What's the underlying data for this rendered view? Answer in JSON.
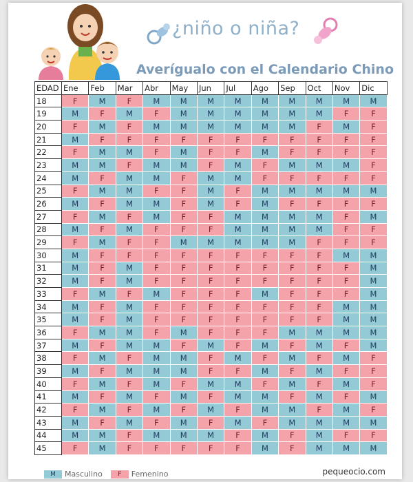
{
  "header": {
    "title": "¿niño o niña?",
    "subtitle": "Averígualo con el Calendario Chino"
  },
  "colors": {
    "M": "#93cad6",
    "F": "#f5a3ab"
  },
  "table": {
    "columns": [
      "EDAD",
      "Ene",
      "Feb",
      "Mar",
      "Abr",
      "May",
      "Jun",
      "Jul",
      "Ago",
      "Sep",
      "Oct",
      "Nov",
      "Dic"
    ],
    "rows": [
      {
        "age": "18",
        "values": [
          "F",
          "M",
          "F",
          "M",
          "M",
          "M",
          "M",
          "M",
          "M",
          "M",
          "M",
          "M"
        ]
      },
      {
        "age": "19",
        "values": [
          "M",
          "F",
          "M",
          "F",
          "M",
          "M",
          "M",
          "M",
          "M",
          "M",
          "F",
          "F"
        ]
      },
      {
        "age": "20",
        "values": [
          "F",
          "M",
          "F",
          "M",
          "M",
          "M",
          "M",
          "M",
          "M",
          "F",
          "M",
          "F"
        ]
      },
      {
        "age": "21",
        "values": [
          "M",
          "F",
          "F",
          "F",
          "F",
          "F",
          "F",
          "F",
          "F",
          "F",
          "F",
          "F"
        ]
      },
      {
        "age": "22",
        "values": [
          "F",
          "M",
          "M",
          "F",
          "M",
          "F",
          "F",
          "M",
          "F",
          "F",
          "F",
          "F"
        ]
      },
      {
        "age": "23",
        "values": [
          "M",
          "M",
          "F",
          "M",
          "M",
          "F",
          "M",
          "F",
          "M",
          "M",
          "M",
          "F"
        ]
      },
      {
        "age": "24",
        "values": [
          "M",
          "F",
          "M",
          "M",
          "F",
          "M",
          "M",
          "F",
          "F",
          "F",
          "F",
          "F"
        ]
      },
      {
        "age": "25",
        "values": [
          "F",
          "M",
          "M",
          "F",
          "F",
          "M",
          "F",
          "M",
          "M",
          "M",
          "M",
          "M"
        ]
      },
      {
        "age": "26",
        "values": [
          "M",
          "F",
          "M",
          "M",
          "F",
          "M",
          "F",
          "M",
          "F",
          "F",
          "F",
          "F"
        ]
      },
      {
        "age": "27",
        "values": [
          "F",
          "M",
          "F",
          "M",
          "F",
          "F",
          "M",
          "M",
          "M",
          "M",
          "F",
          "M"
        ]
      },
      {
        "age": "28",
        "values": [
          "M",
          "F",
          "M",
          "F",
          "F",
          "F",
          "M",
          "M",
          "M",
          "M",
          "F",
          "F"
        ]
      },
      {
        "age": "29",
        "values": [
          "F",
          "M",
          "F",
          "F",
          "M",
          "M",
          "M",
          "M",
          "M",
          "F",
          "F",
          "F"
        ]
      },
      {
        "age": "30",
        "values": [
          "M",
          "F",
          "F",
          "F",
          "F",
          "F",
          "F",
          "F",
          "F",
          "F",
          "M",
          "M"
        ]
      },
      {
        "age": "31",
        "values": [
          "M",
          "F",
          "M",
          "F",
          "F",
          "F",
          "F",
          "F",
          "F",
          "F",
          "F",
          "M"
        ]
      },
      {
        "age": "32",
        "values": [
          "M",
          "F",
          "M",
          "F",
          "F",
          "F",
          "F",
          "F",
          "F",
          "F",
          "F",
          "M"
        ]
      },
      {
        "age": "33",
        "values": [
          "F",
          "M",
          "F",
          "M",
          "F",
          "F",
          "F",
          "M",
          "F",
          "F",
          "F",
          "M"
        ]
      },
      {
        "age": "34",
        "values": [
          "M",
          "F",
          "M",
          "F",
          "F",
          "F",
          "F",
          "F",
          "F",
          "F",
          "M",
          "M"
        ]
      },
      {
        "age": "35",
        "values": [
          "M",
          "F",
          "M",
          "F",
          "F",
          "F",
          "F",
          "F",
          "F",
          "F",
          "M",
          "M"
        ]
      },
      {
        "age": "36",
        "values": [
          "F",
          "M",
          "M",
          "F",
          "M",
          "F",
          "F",
          "F",
          "M",
          "M",
          "M",
          "M"
        ]
      },
      {
        "age": "37",
        "values": [
          "M",
          "F",
          "M",
          "M",
          "F",
          "M",
          "F",
          "M",
          "F",
          "M",
          "F",
          "M"
        ]
      },
      {
        "age": "38",
        "values": [
          "F",
          "M",
          "F",
          "M",
          "M",
          "F",
          "M",
          "F",
          "M",
          "F",
          "M",
          "F"
        ]
      },
      {
        "age": "39",
        "values": [
          "M",
          "F",
          "M",
          "M",
          "M",
          "F",
          "F",
          "M",
          "F",
          "M",
          "F",
          "F"
        ]
      },
      {
        "age": "40",
        "values": [
          "F",
          "M",
          "F",
          "M",
          "F",
          "M",
          "M",
          "F",
          "M",
          "F",
          "M",
          "F"
        ]
      },
      {
        "age": "41",
        "values": [
          "M",
          "F",
          "M",
          "F",
          "M",
          "F",
          "M",
          "M",
          "F",
          "M",
          "F",
          "M"
        ]
      },
      {
        "age": "42",
        "values": [
          "F",
          "M",
          "F",
          "M",
          "F",
          "M",
          "F",
          "M",
          "M",
          "F",
          "M",
          "F"
        ]
      },
      {
        "age": "43",
        "values": [
          "M",
          "F",
          "M",
          "F",
          "M",
          "F",
          "M",
          "F",
          "M",
          "M",
          "M",
          "M"
        ]
      },
      {
        "age": "44",
        "values": [
          "M",
          "M",
          "F",
          "M",
          "M",
          "M",
          "F",
          "M",
          "F",
          "M",
          "F",
          "F"
        ]
      },
      {
        "age": "45",
        "values": [
          "F",
          "M",
          "F",
          "F",
          "F",
          "F",
          "F",
          "M",
          "F",
          "M",
          "M",
          "M"
        ]
      }
    ]
  },
  "legend": [
    {
      "code": "M",
      "label": "Masculino"
    },
    {
      "code": "F",
      "label": "Femenino"
    }
  ],
  "credit": "pequeocio.com"
}
